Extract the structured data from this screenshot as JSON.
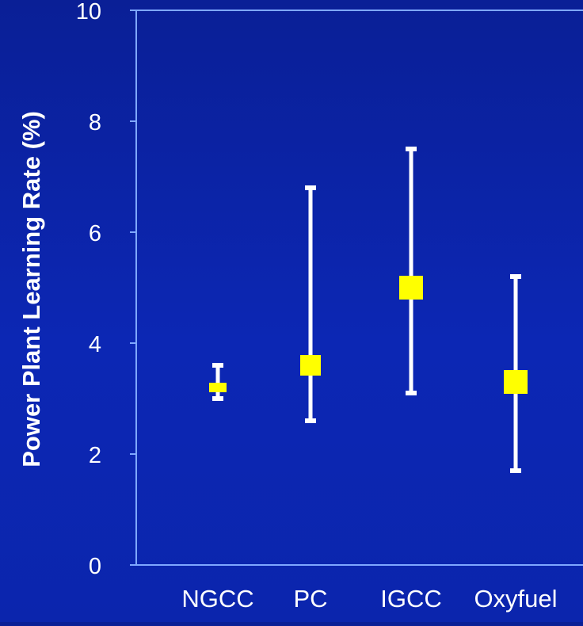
{
  "chart_data": {
    "type": "scatter",
    "title": "",
    "xlabel": "",
    "ylabel": "Power Plant Learning Rate (%)",
    "categories": [
      "NGCC",
      "PC",
      "IGCC",
      "Oxyfuel"
    ],
    "ylim": [
      0,
      10
    ],
    "yticks": [
      0,
      2,
      4,
      6,
      8,
      10
    ],
    "series": [
      {
        "values": [
          3.2,
          3.6,
          5.0,
          3.3
        ],
        "low": [
          3.0,
          2.6,
          3.1,
          1.7
        ],
        "high": [
          3.6,
          6.8,
          7.5,
          5.2
        ]
      }
    ],
    "grid": false,
    "legend": "none",
    "colors": {
      "background": "#0c27b4",
      "axis": "#7fa8ff",
      "text": "#ffffff",
      "marker": "#ffff00",
      "error_bar": "#ffffff"
    }
  }
}
